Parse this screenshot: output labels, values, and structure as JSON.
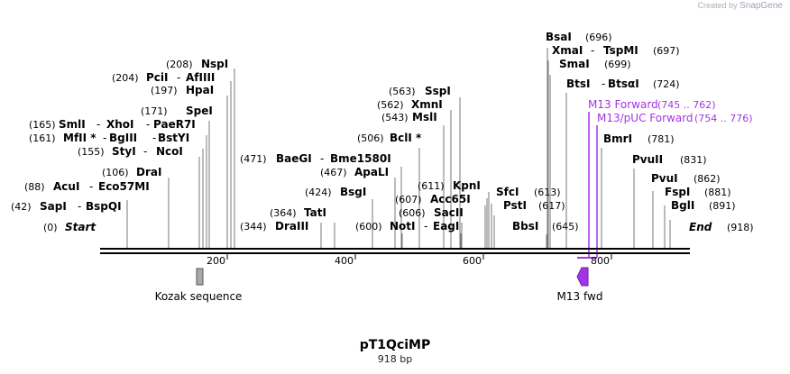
{
  "credit": {
    "prefix": "Created by",
    "brand": "SnapGene"
  },
  "plasmid": {
    "name": "pT1QciMP",
    "length_label": "918 bp"
  },
  "axis": {
    "ticks": [
      "200",
      "400",
      "600",
      "800"
    ]
  },
  "enzymes": [
    {
      "text": "(0)",
      "kind": "pos"
    },
    {
      "text": "Start",
      "kind": "startend"
    },
    {
      "text": "(42)",
      "kind": "pos"
    },
    {
      "text": "SapI",
      "kind": "name"
    },
    {
      "text": "-",
      "kind": "sep"
    },
    {
      "text": "BspQI",
      "kind": "name"
    },
    {
      "text": "(88)",
      "kind": "pos"
    },
    {
      "text": "AcuI",
      "kind": "name"
    },
    {
      "text": "-",
      "kind": "sep"
    },
    {
      "text": "Eco57MI",
      "kind": "name"
    },
    {
      "text": "(106)",
      "kind": "pos"
    },
    {
      "text": "DraI",
      "kind": "name"
    },
    {
      "text": "(155)",
      "kind": "pos"
    },
    {
      "text": "StyI",
      "kind": "name"
    },
    {
      "text": "-",
      "kind": "sep"
    },
    {
      "text": "NcoI",
      "kind": "name"
    },
    {
      "text": "(161)",
      "kind": "pos"
    },
    {
      "text": "MfII *",
      "kind": "name"
    },
    {
      "text": "-",
      "kind": "sep"
    },
    {
      "text": "BgIII",
      "kind": "name"
    },
    {
      "text": "-",
      "kind": "sep"
    },
    {
      "text": "BstYI",
      "kind": "name"
    },
    {
      "text": "(165)",
      "kind": "pos"
    },
    {
      "text": "SmlI",
      "kind": "name"
    },
    {
      "text": "-",
      "kind": "sep"
    },
    {
      "text": "XhoI",
      "kind": "name"
    },
    {
      "text": "-",
      "kind": "sep"
    },
    {
      "text": "PaeR7I",
      "kind": "name"
    },
    {
      "text": "(171)",
      "kind": "pos"
    },
    {
      "text": "SpeI",
      "kind": "name"
    },
    {
      "text": "(197)",
      "kind": "pos"
    },
    {
      "text": "HpaI",
      "kind": "name"
    },
    {
      "text": "(204)",
      "kind": "pos"
    },
    {
      "text": "PciI",
      "kind": "name"
    },
    {
      "text": "-",
      "kind": "sep"
    },
    {
      "text": "AfIIII",
      "kind": "name"
    },
    {
      "text": "(208)",
      "kind": "pos"
    },
    {
      "text": "NspI",
      "kind": "name"
    },
    {
      "text": "(364)",
      "kind": "pos"
    },
    {
      "text": "TatI",
      "kind": "name"
    },
    {
      "text": "(344)",
      "kind": "pos"
    },
    {
      "text": "DraIII",
      "kind": "name"
    },
    {
      "text": "(424)",
      "kind": "pos"
    },
    {
      "text": "BsgI",
      "kind": "name"
    },
    {
      "text": "(467)",
      "kind": "pos"
    },
    {
      "text": "ApaLI",
      "kind": "name"
    },
    {
      "text": "(471)",
      "kind": "pos"
    },
    {
      "text": "BaeGI",
      "kind": "name"
    },
    {
      "text": "-",
      "kind": "sep"
    },
    {
      "text": "Bme1580I",
      "kind": "name"
    },
    {
      "text": "(506)",
      "kind": "pos"
    },
    {
      "text": "BclI *",
      "kind": "name"
    },
    {
      "text": "(543)",
      "kind": "pos"
    },
    {
      "text": "MslI",
      "kind": "name"
    },
    {
      "text": "(562)",
      "kind": "pos"
    },
    {
      "text": "XmnI",
      "kind": "name"
    },
    {
      "text": "(563)",
      "kind": "pos"
    },
    {
      "text": "SspI",
      "kind": "name"
    },
    {
      "text": "(600)",
      "kind": "pos"
    },
    {
      "text": "NotI",
      "kind": "name"
    },
    {
      "text": "-",
      "kind": "sep"
    },
    {
      "text": "EagI",
      "kind": "name"
    },
    {
      "text": "(606)",
      "kind": "pos"
    },
    {
      "text": "SacII",
      "kind": "name"
    },
    {
      "text": "(607)",
      "kind": "pos"
    },
    {
      "text": "Acc65I",
      "kind": "name"
    },
    {
      "text": "(611)",
      "kind": "pos"
    },
    {
      "text": "KpnI",
      "kind": "name"
    },
    {
      "text": "BbsI",
      "kind": "name"
    },
    {
      "text": "(645)",
      "kind": "pos"
    },
    {
      "text": "PstI",
      "kind": "name"
    },
    {
      "text": "(617)",
      "kind": "pos"
    },
    {
      "text": "SfcI",
      "kind": "name"
    },
    {
      "text": "(613)",
      "kind": "pos"
    },
    {
      "text": "BsaI",
      "kind": "name"
    },
    {
      "text": "(696)",
      "kind": "pos"
    },
    {
      "text": "XmaI",
      "kind": "name"
    },
    {
      "text": "-",
      "kind": "sep"
    },
    {
      "text": "TspMI",
      "kind": "name"
    },
    {
      "text": "(697)",
      "kind": "pos"
    },
    {
      "text": "SmaI",
      "kind": "name"
    },
    {
      "text": "(699)",
      "kind": "pos"
    },
    {
      "text": "BtsI",
      "kind": "name"
    },
    {
      "text": "-",
      "kind": "sep"
    },
    {
      "text": "BtsαI",
      "kind": "name"
    },
    {
      "text": "(724)",
      "kind": "pos"
    },
    {
      "text": "M13 Forward",
      "kind": "primer"
    },
    {
      "text": "(745 .. 762)",
      "kind": "primer-pos"
    },
    {
      "text": "M13/pUC Forward",
      "kind": "primer"
    },
    {
      "text": "(754 .. 776)",
      "kind": "primer-pos"
    },
    {
      "text": "BmrI",
      "kind": "name"
    },
    {
      "text": "(781)",
      "kind": "pos"
    },
    {
      "text": "PvuII",
      "kind": "name"
    },
    {
      "text": "(831)",
      "kind": "pos"
    },
    {
      "text": "PvuI",
      "kind": "name"
    },
    {
      "text": "(862)",
      "kind": "pos"
    },
    {
      "text": "FspI",
      "kind": "name"
    },
    {
      "text": "(881)",
      "kind": "pos"
    },
    {
      "text": "BglI",
      "kind": "name"
    },
    {
      "text": "(891)",
      "kind": "pos"
    },
    {
      "text": "End",
      "kind": "startend"
    },
    {
      "text": "(918)",
      "kind": "pos"
    }
  ],
  "features": [
    {
      "label": "Kozak sequence",
      "color": "#a9a9a9"
    },
    {
      "label": "M13 fwd",
      "color": "#a334e8"
    }
  ],
  "colors": {
    "primer": "#a334e8",
    "backbone": "#000000",
    "cut_line": "#777777"
  }
}
